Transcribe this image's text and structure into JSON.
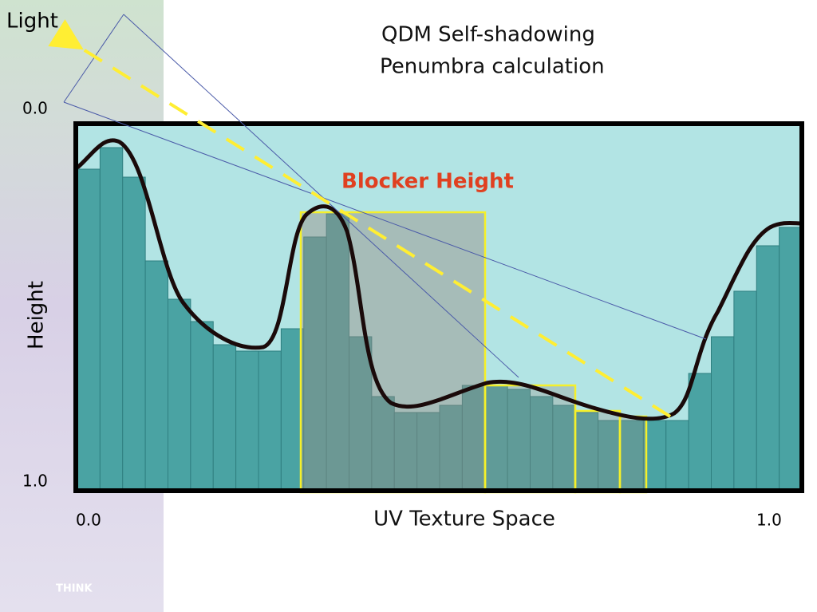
{
  "title": {
    "line1": "QDM Self-shadowing",
    "line2": "Penumbra calculation"
  },
  "labels": {
    "light": "Light",
    "blocker_height": "Blocker Height",
    "y_axis": "Height",
    "x_axis": "UV Texture Space"
  },
  "y_axis_ends": {
    "top": "0.0",
    "bottom": "1.0"
  },
  "x_axis_ends": {
    "left": "0.0",
    "right": "1.0"
  },
  "logo": "THINK"
}
